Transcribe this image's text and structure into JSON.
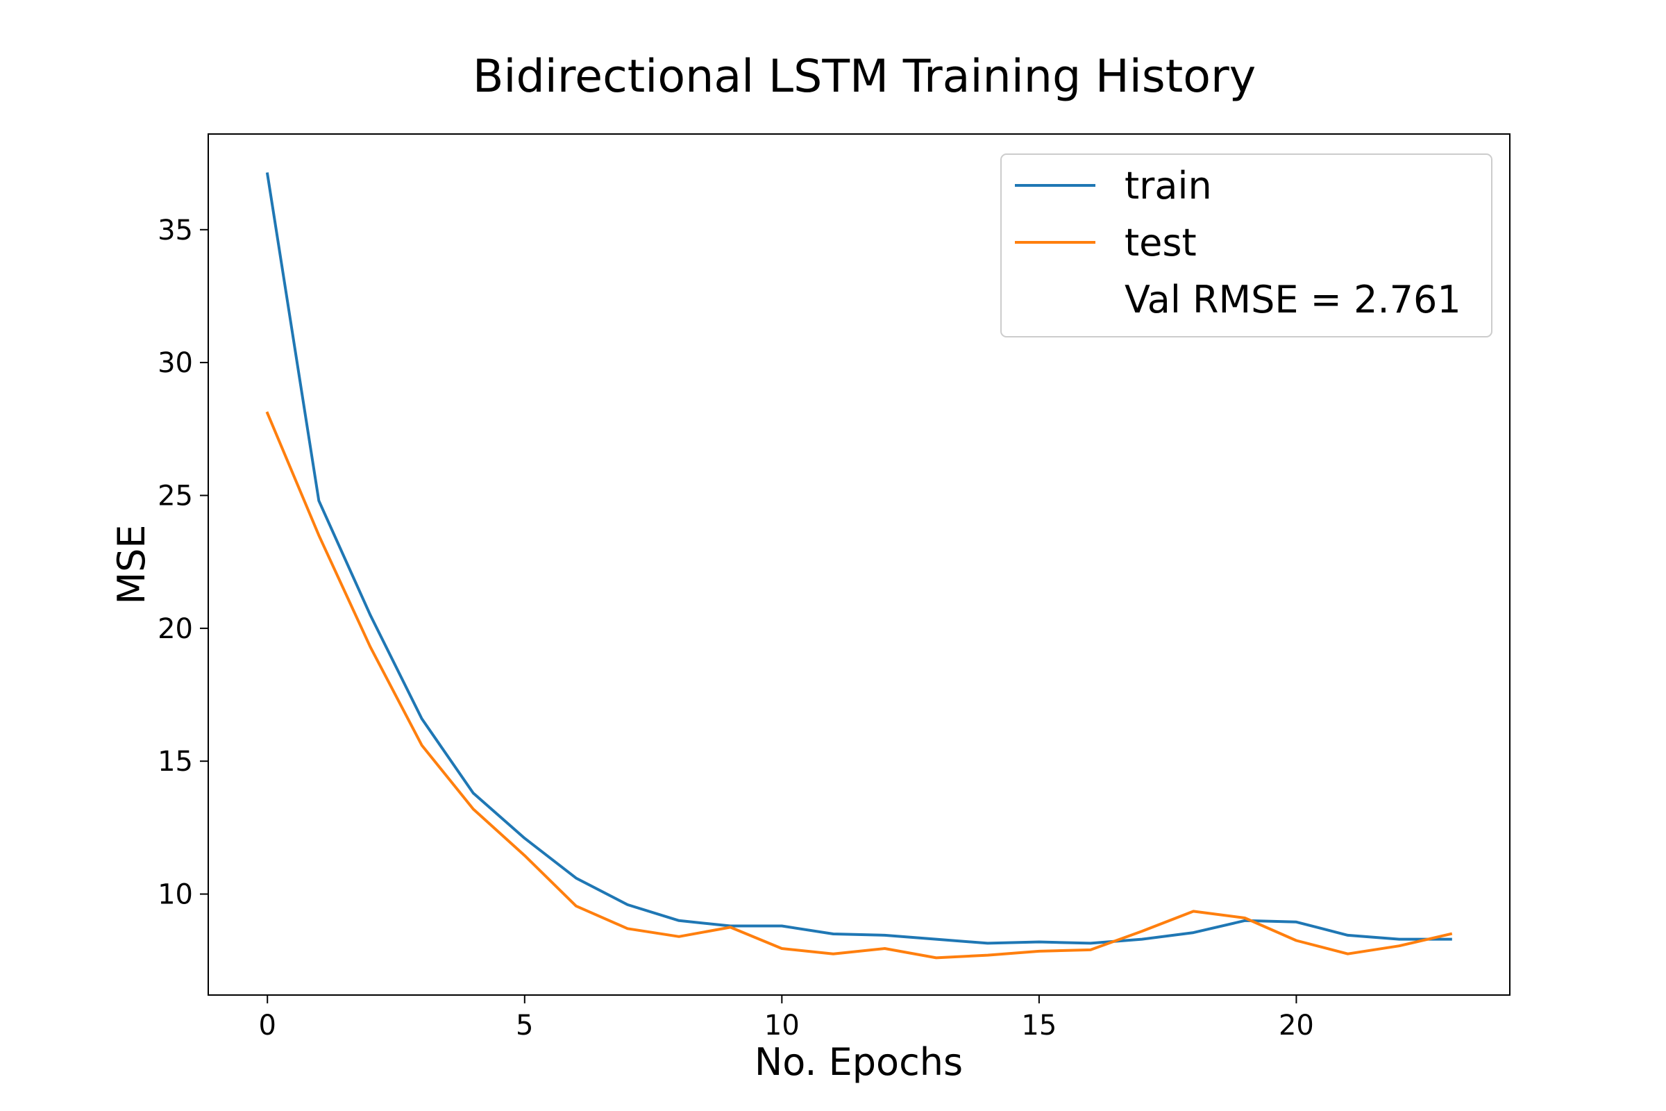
{
  "chart_data": {
    "type": "line",
    "title": "Bidirectional LSTM Training History",
    "xlabel": "No. Epochs",
    "ylabel": "MSE",
    "xlim": [
      -1.15,
      24.15
    ],
    "ylim": [
      6.2,
      38.6
    ],
    "x_ticks": [
      0,
      5,
      10,
      15,
      20
    ],
    "y_ticks": [
      10,
      15,
      20,
      25,
      30,
      35
    ],
    "grid": false,
    "legend_position": "top-right",
    "legend_note": "Val RMSE = 2.761",
    "x": [
      0,
      1,
      2,
      3,
      4,
      5,
      6,
      7,
      8,
      9,
      10,
      11,
      12,
      13,
      14,
      15,
      16,
      17,
      18,
      19,
      20,
      21,
      22,
      23
    ],
    "series": [
      {
        "name": "train",
        "color": "#1f77b4",
        "values": [
          37.1,
          24.8,
          20.5,
          16.6,
          13.8,
          12.1,
          10.6,
          9.6,
          9.0,
          8.8,
          8.8,
          8.5,
          8.45,
          8.3,
          8.15,
          8.2,
          8.15,
          8.3,
          8.55,
          9.0,
          8.95,
          8.45,
          8.3,
          8.3
        ]
      },
      {
        "name": "test",
        "color": "#ff7f0e",
        "values": [
          28.1,
          23.5,
          19.3,
          15.6,
          13.2,
          11.45,
          9.55,
          8.7,
          8.4,
          8.75,
          7.95,
          7.75,
          7.95,
          7.6,
          7.7,
          7.85,
          7.9,
          8.6,
          9.35,
          9.1,
          8.25,
          7.75,
          8.05,
          8.5
        ]
      }
    ]
  }
}
